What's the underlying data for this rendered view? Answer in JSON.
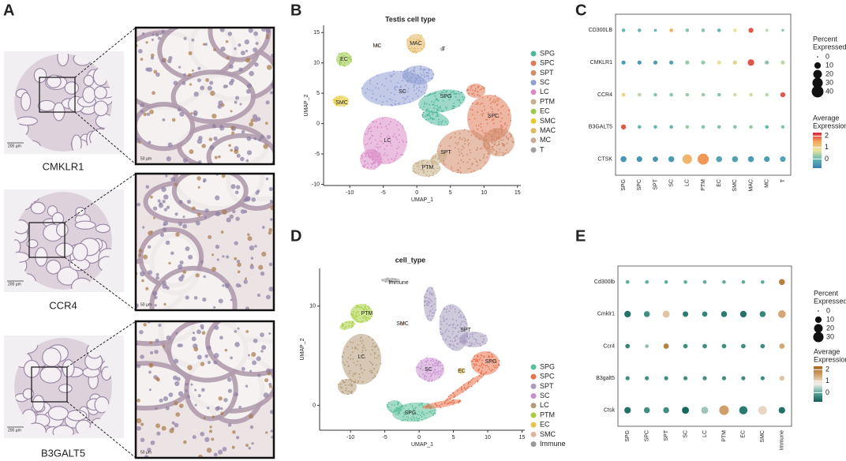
{
  "panel_a": {
    "panel": "A",
    "rows": [
      {
        "label": "CMKLR1",
        "scale_overview": "200 µm",
        "scale_zoom": "50 µm"
      },
      {
        "label": "CCR4",
        "scale_overview": "200 µm",
        "scale_zoom": "50 µm"
      },
      {
        "label": "B3GALT5",
        "scale_overview": "200 µm",
        "scale_zoom": "50 µm"
      }
    ]
  },
  "chart_data": [
    {
      "panel": "B",
      "type": "umap",
      "title": "Testis cell type",
      "x_label": "UMAP_1",
      "y_label": "UMAP_2",
      "xlim": [
        -13.9,
        15.5
      ],
      "ylim": [
        -10.2,
        16.2
      ],
      "xticks": [
        -10,
        -5,
        0,
        5,
        10,
        15
      ],
      "yticks": [
        -10,
        -5,
        0,
        5,
        10,
        15
      ],
      "clusters": [
        {
          "name": "SPG",
          "color": "#4fb89a"
        },
        {
          "name": "SPC",
          "color": "#e07b5a"
        },
        {
          "name": "SPT",
          "color": "#d18b6a"
        },
        {
          "name": "SC",
          "color": "#8f9fd4"
        },
        {
          "name": "LC",
          "color": "#d88bc6"
        },
        {
          "name": "PTM",
          "color": "#c9b08a"
        },
        {
          "name": "EC",
          "color": "#9cc94a"
        },
        {
          "name": "SMC",
          "color": "#e8c82a"
        },
        {
          "name": "MAC",
          "color": "#e3b75e"
        },
        {
          "name": "MC",
          "color": "#c9a99a"
        },
        {
          "name": "T",
          "color": "#a0a0a0"
        }
      ]
    },
    {
      "panel": "C",
      "type": "dotplot",
      "genes": [
        "CD300LB",
        "CMKLR1",
        "CCR4",
        "B3GALT5",
        "CTSK"
      ],
      "groups": [
        "SPG",
        "SPC",
        "SPT",
        "SC",
        "LC",
        "PTM",
        "EC",
        "SMC",
        "MAC",
        "MC",
        "T"
      ],
      "pct": [
        [
          2,
          2,
          1,
          2,
          2,
          2,
          2,
          2,
          5,
          1,
          1
        ],
        [
          3,
          3,
          3,
          3,
          3,
          3,
          3,
          3,
          10,
          3,
          3
        ],
        [
          2,
          2,
          2,
          2,
          2,
          2,
          2,
          2,
          2,
          2,
          5
        ],
        [
          5,
          2,
          2,
          2,
          2,
          2,
          2,
          2,
          2,
          2,
          2
        ],
        [
          8,
          7,
          6,
          8,
          25,
          35,
          8,
          8,
          8,
          7,
          7
        ]
      ],
      "avg": [
        [
          0,
          0,
          0,
          1.4,
          0.2,
          0.2,
          0,
          0.8,
          2,
          0.5,
          0.3
        ],
        [
          -0.4,
          -0.4,
          -0.4,
          -0.3,
          0.3,
          0.3,
          0.8,
          1,
          2,
          0.2,
          0.5
        ],
        [
          1,
          0.5,
          0.2,
          0.2,
          0.3,
          0.3,
          0.2,
          0.6,
          0.6,
          0.5,
          2
        ],
        [
          2,
          0,
          0,
          0,
          0.3,
          0.2,
          0.2,
          0.2,
          0.3,
          0,
          0.2
        ],
        [
          -0.5,
          -0.5,
          -0.5,
          -0.4,
          1.3,
          1.6,
          -0.3,
          -0.3,
          -0.4,
          -0.4,
          -0.3
        ]
      ],
      "size_title": [
        "Percent",
        "Expressed"
      ],
      "size_ticks": [
        0,
        10,
        20,
        30,
        40
      ],
      "color_title": [
        "Average",
        "Expression"
      ],
      "color_ticks": [
        2,
        1,
        0
      ],
      "color_lim": [
        -0.8,
        2.3
      ],
      "colors": [
        "#3a7fb5",
        "#5fb6b0",
        "#e9e6a0",
        "#f4a35a",
        "#d7263d"
      ]
    },
    {
      "panel": "D",
      "type": "umap",
      "title": "cell_type",
      "x_label": "UMAP_1",
      "y_label": "UMAP_2",
      "xlim": [
        -14.5,
        15.4
      ],
      "ylim": [
        -2.5,
        13.8
      ],
      "xticks": [
        -10,
        -5,
        0,
        5,
        10,
        15
      ],
      "yticks": [
        10,
        0
      ],
      "clusters": [
        {
          "name": "SPG",
          "color": "#5bbf9a"
        },
        {
          "name": "SPC",
          "color": "#e8734d"
        },
        {
          "name": "SPT",
          "color": "#a89cc0"
        },
        {
          "name": "SC",
          "color": "#c88fd0"
        },
        {
          "name": "LC",
          "color": "#b59a78"
        },
        {
          "name": "PTM",
          "color": "#a6cf3b"
        },
        {
          "name": "EC",
          "color": "#e8c24a"
        },
        {
          "name": "SMC",
          "color": "#e0b49a"
        },
        {
          "name": "Immune",
          "color": "#9a9a9a"
        }
      ]
    },
    {
      "panel": "E",
      "type": "dotplot",
      "genes": [
        "Cd300lb",
        "Cmklr1",
        "Ccr4",
        "B3galt5",
        "Ctsk"
      ],
      "groups": [
        "SPG",
        "SPC",
        "SPT",
        "SC",
        "LC",
        "PTM",
        "EC",
        "SMC",
        "Immune"
      ],
      "pct": [
        [
          2,
          2,
          2,
          2,
          2,
          2,
          2,
          2,
          8
        ],
        [
          10,
          8,
          12,
          7,
          6,
          8,
          10,
          8,
          15
        ],
        [
          4,
          2,
          6,
          4,
          4,
          4,
          4,
          4,
          6
        ],
        [
          3,
          3,
          3,
          3,
          3,
          3,
          3,
          3,
          5
        ],
        [
          10,
          8,
          8,
          12,
          12,
          25,
          18,
          20,
          10
        ]
      ],
      "avg": [
        [
          0,
          0,
          0,
          0,
          0,
          0,
          0,
          0,
          2
        ],
        [
          -0.6,
          -0.3,
          1.2,
          -0.5,
          -0.4,
          -0.5,
          -0.6,
          -0.4,
          1.5
        ],
        [
          -0.4,
          0.2,
          2,
          -0.3,
          -0.3,
          -0.3,
          -0.3,
          -0.3,
          1.5
        ],
        [
          -0.3,
          -0.3,
          -0.3,
          -0.3,
          -0.3,
          -0.3,
          -0.3,
          -0.3,
          1.2
        ],
        [
          -0.6,
          -0.3,
          -0.3,
          -0.7,
          0.3,
          1.6,
          -0.5,
          1,
          -0.6
        ]
      ],
      "size_title": [
        "Percent",
        "Expressed"
      ],
      "size_ticks": [
        0,
        10,
        20,
        30
      ],
      "color_title": [
        "Average",
        "Expression"
      ],
      "color_ticks": [
        2,
        1,
        0
      ],
      "color_lim": [
        -0.8,
        2.3
      ],
      "colors": [
        "#0f5e55",
        "#5ba89a",
        "#f2f0ea",
        "#d4a470",
        "#a8641c"
      ]
    }
  ]
}
